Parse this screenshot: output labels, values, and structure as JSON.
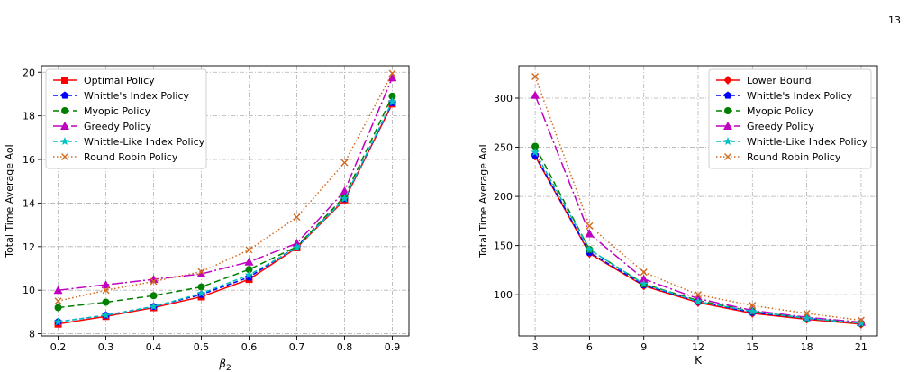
{
  "page_number": "13",
  "chart_data": [
    {
      "type": "line",
      "xlabel": "β2",
      "ylabel": "Total Time Average AoI",
      "x": [
        0.2,
        0.3,
        0.4,
        0.5,
        0.6,
        0.7,
        0.8,
        0.9
      ],
      "xticks": [
        "0.2",
        "0.3",
        "0.4",
        "0.5",
        "0.6",
        "0.7",
        "0.8",
        "0.9"
      ],
      "xlim": [
        0.165,
        0.935
      ],
      "yticks": [
        8,
        10,
        12,
        14,
        16,
        18,
        20
      ],
      "ylim": [
        7.9,
        20.3
      ],
      "grid": true,
      "legend_position": "top-left",
      "series": [
        {
          "name": "Optimal Policy",
          "color": "#ff0000",
          "marker": "square",
          "dash": "",
          "values": [
            8.45,
            8.8,
            9.2,
            9.7,
            10.5,
            11.95,
            14.15,
            18.55
          ]
        },
        {
          "name": "Whittle's Index Policy",
          "color": "#0000ff",
          "marker": "pentagon",
          "dash": "5,3",
          "values": [
            8.55,
            8.85,
            9.25,
            9.8,
            10.6,
            12.0,
            14.2,
            18.6
          ]
        },
        {
          "name": "Myopic Policy",
          "color": "#008000",
          "marker": "circle",
          "dash": "7,4",
          "values": [
            9.2,
            9.45,
            9.75,
            10.15,
            10.95,
            12.0,
            14.3,
            18.9
          ]
        },
        {
          "name": "Greedy Policy",
          "color": "#c000c0",
          "marker": "triangle",
          "dash": "12,3,2,3",
          "values": [
            10.0,
            10.25,
            10.5,
            10.75,
            11.3,
            12.15,
            14.55,
            19.75
          ]
        },
        {
          "name": "Whittle-Like Index Policy",
          "color": "#00c0c0",
          "marker": "star",
          "dash": "5,3",
          "values": [
            8.55,
            8.85,
            9.25,
            9.85,
            10.7,
            11.95,
            14.2,
            18.65
          ]
        },
        {
          "name": "Round Robin Policy",
          "color": "#d2691e",
          "marker": "x",
          "dash": "1.5,2.5",
          "values": [
            9.5,
            10.0,
            10.4,
            10.85,
            11.85,
            13.35,
            15.85,
            19.95
          ]
        }
      ]
    },
    {
      "type": "line",
      "xlabel": "K",
      "ylabel": "Total Time Average AoI",
      "x": [
        3,
        6,
        9,
        12,
        15,
        18,
        21
      ],
      "xticks": [
        "3",
        "6",
        "9",
        "12",
        "15",
        "18",
        "21"
      ],
      "xlim": [
        2.1,
        21.9
      ],
      "yticks": [
        100,
        150,
        200,
        250,
        300
      ],
      "ylim": [
        58,
        333
      ],
      "grid": true,
      "legend_position": "top-right",
      "series": [
        {
          "name": "Lower Bound",
          "color": "#ff0000",
          "marker": "diamond",
          "dash": "",
          "values": [
            241,
            142,
            109,
            92,
            81,
            75,
            70
          ]
        },
        {
          "name": "Whittle's Index Policy",
          "color": "#0000ff",
          "marker": "pentagon",
          "dash": "5,3",
          "values": [
            242,
            143,
            110,
            93,
            82,
            76,
            71
          ]
        },
        {
          "name": "Myopic Policy",
          "color": "#008000",
          "marker": "circle",
          "dash": "7,4",
          "values": [
            251,
            146,
            111,
            94,
            83,
            76,
            71
          ]
        },
        {
          "name": "Greedy Policy",
          "color": "#c000c0",
          "marker": "triangle",
          "dash": "12,3,2,3",
          "values": [
            303,
            162,
            116,
            96,
            84,
            77,
            72
          ]
        },
        {
          "name": "Whittle-Like Index Policy",
          "color": "#00c0c0",
          "marker": "star",
          "dash": "5,3",
          "values": [
            245,
            146,
            111,
            93,
            83,
            76,
            71
          ]
        },
        {
          "name": "Round Robin Policy",
          "color": "#d2691e",
          "marker": "x",
          "dash": "1.5,2.5",
          "values": [
            322,
            170,
            123,
            100,
            89,
            81,
            74
          ]
        }
      ]
    }
  ]
}
